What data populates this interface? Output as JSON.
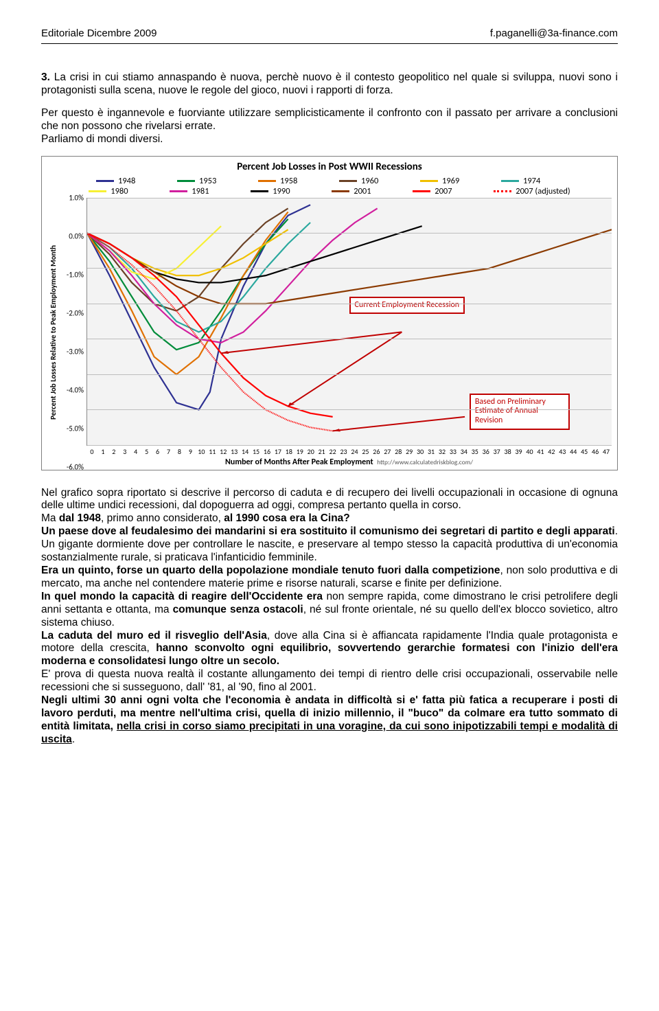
{
  "header": {
    "left": "Editoriale Dicembre 2009",
    "right": "f.paganelli@3a-finance.com"
  },
  "para1_lead": "3.",
  "para1": " La crisi in cui stiamo annaspando è nuova, perchè nuovo è il contesto geopolitico nel quale si sviluppa, nuovi sono i protagonisti sulla scena, nuove le regole del gioco, nuovi i rapporti di forza.",
  "para2": "Per questo è ingannevole e fuorviante utilizzare semplicisticamente il confronto con il passato per arrivare a conclusioni che non possono che rivelarsi errate.",
  "para3": "Parliamo di mondi diversi.",
  "chart": {
    "title": "Percent Job Losses in Post WWII Recessions",
    "yaxis_label": "Percent Job Losses Relative to Peak Employment Month",
    "xaxis_label": "Number of Months After Peak Employment",
    "xaxis_source": "http://www.calculatedriskblog.com/",
    "ylim": [
      -6.0,
      1.0
    ],
    "yticks": [
      "1.0%",
      "0.0%",
      "-1.0%",
      "-2.0%",
      "-3.0%",
      "-4.0%",
      "-5.0%",
      "-6.0%"
    ],
    "ytick_vals": [
      1.0,
      0.0,
      -1.0,
      -2.0,
      -3.0,
      -4.0,
      -5.0,
      -6.0
    ],
    "xticks": [
      "0",
      "1",
      "2",
      "3",
      "4",
      "5",
      "6",
      "7",
      "8",
      "9",
      "10",
      "11",
      "12",
      "13",
      "14",
      "15",
      "16",
      "17",
      "18",
      "19",
      "20",
      "21",
      "22",
      "23",
      "24",
      "25",
      "26",
      "27",
      "28",
      "29",
      "30",
      "31",
      "32",
      "33",
      "34",
      "35",
      "36",
      "37",
      "38",
      "39",
      "40",
      "41",
      "42",
      "43",
      "44",
      "45",
      "46",
      "47"
    ],
    "background_color": "#f3f3f3",
    "grid_color": "#bdbdbd",
    "callout1": "Current Employment Recession",
    "callout1_color": "#c00000",
    "callout2": "Based on Preliminary Estimate of Annual Revision",
    "callout2_color": "#c00000",
    "legend": [
      {
        "label": "1948",
        "color": "#2e3192",
        "style": "solid"
      },
      {
        "label": "1953",
        "color": "#008c3a",
        "style": "solid"
      },
      {
        "label": "1958",
        "color": "#e07000",
        "style": "solid"
      },
      {
        "label": "1960",
        "color": "#6b4226",
        "style": "solid"
      },
      {
        "label": "1969",
        "color": "#f0c000",
        "style": "solid"
      },
      {
        "label": "1974",
        "color": "#2aa89e",
        "style": "solid"
      },
      {
        "label": "1980",
        "color": "#f7f033",
        "style": "solid"
      },
      {
        "label": "1981",
        "color": "#d11f9e",
        "style": "solid"
      },
      {
        "label": "1990",
        "color": "#000000",
        "style": "solid"
      },
      {
        "label": "2001",
        "color": "#8b3a00",
        "style": "solid"
      },
      {
        "label": "2007",
        "color": "#ff0000",
        "style": "solid"
      },
      {
        "label": "2007 (adjusted)",
        "color": "#ff0000",
        "style": "dotted"
      }
    ],
    "series": {
      "1948": {
        "color": "#2e3192",
        "pts": [
          [
            0,
            0
          ],
          [
            2,
            -1.2
          ],
          [
            4,
            -2.5
          ],
          [
            6,
            -3.8
          ],
          [
            8,
            -4.8
          ],
          [
            10,
            -5.0
          ],
          [
            11,
            -4.5
          ],
          [
            12,
            -3.0
          ],
          [
            14,
            -1.5
          ],
          [
            16,
            -0.3
          ],
          [
            18,
            0.5
          ],
          [
            20,
            0.8
          ]
        ]
      },
      "1953": {
        "color": "#008c3a",
        "pts": [
          [
            0,
            0
          ],
          [
            2,
            -0.8
          ],
          [
            4,
            -1.8
          ],
          [
            6,
            -2.8
          ],
          [
            8,
            -3.3
          ],
          [
            10,
            -3.1
          ],
          [
            12,
            -2.2
          ],
          [
            14,
            -1.2
          ],
          [
            16,
            -0.3
          ],
          [
            18,
            0.4
          ]
        ]
      },
      "1958": {
        "color": "#e07000",
        "pts": [
          [
            0,
            0
          ],
          [
            2,
            -1.0
          ],
          [
            4,
            -2.2
          ],
          [
            6,
            -3.5
          ],
          [
            8,
            -4.0
          ],
          [
            10,
            -3.5
          ],
          [
            12,
            -2.4
          ],
          [
            14,
            -1.2
          ],
          [
            16,
            -0.2
          ],
          [
            18,
            0.6
          ]
        ]
      },
      "1960": {
        "color": "#6b4226",
        "pts": [
          [
            0,
            0
          ],
          [
            2,
            -0.6
          ],
          [
            4,
            -1.4
          ],
          [
            6,
            -2.0
          ],
          [
            8,
            -2.2
          ],
          [
            10,
            -1.8
          ],
          [
            12,
            -1.0
          ],
          [
            14,
            -0.3
          ],
          [
            16,
            0.3
          ],
          [
            18,
            0.7
          ]
        ]
      },
      "1969": {
        "color": "#f0c000",
        "pts": [
          [
            0,
            0
          ],
          [
            2,
            -0.3
          ],
          [
            4,
            -0.7
          ],
          [
            6,
            -1.0
          ],
          [
            8,
            -1.2
          ],
          [
            10,
            -1.2
          ],
          [
            12,
            -1.0
          ],
          [
            14,
            -0.7
          ],
          [
            16,
            -0.3
          ],
          [
            18,
            0.1
          ]
        ]
      },
      "1974": {
        "color": "#2aa89e",
        "pts": [
          [
            0,
            0
          ],
          [
            2,
            -0.4
          ],
          [
            4,
            -1.0
          ],
          [
            6,
            -1.8
          ],
          [
            8,
            -2.5
          ],
          [
            10,
            -2.8
          ],
          [
            12,
            -2.5
          ],
          [
            14,
            -1.8
          ],
          [
            16,
            -1.0
          ],
          [
            18,
            -0.3
          ],
          [
            20,
            0.3
          ]
        ]
      },
      "1980": {
        "color": "#f7f033",
        "pts": [
          [
            0,
            0
          ],
          [
            2,
            -0.5
          ],
          [
            4,
            -1.1
          ],
          [
            6,
            -1.3
          ],
          [
            8,
            -1.0
          ],
          [
            10,
            -0.4
          ],
          [
            12,
            0.2
          ]
        ]
      },
      "1981": {
        "color": "#d11f9e",
        "pts": [
          [
            0,
            0
          ],
          [
            2,
            -0.5
          ],
          [
            4,
            -1.2
          ],
          [
            6,
            -2.0
          ],
          [
            8,
            -2.6
          ],
          [
            10,
            -3.0
          ],
          [
            12,
            -3.1
          ],
          [
            14,
            -2.8
          ],
          [
            16,
            -2.2
          ],
          [
            18,
            -1.5
          ],
          [
            20,
            -0.8
          ],
          [
            22,
            -0.2
          ],
          [
            24,
            0.3
          ],
          [
            26,
            0.7
          ]
        ]
      },
      "1990": {
        "color": "#000000",
        "pts": [
          [
            0,
            0
          ],
          [
            2,
            -0.3
          ],
          [
            4,
            -0.7
          ],
          [
            6,
            -1.1
          ],
          [
            8,
            -1.3
          ],
          [
            10,
            -1.4
          ],
          [
            12,
            -1.4
          ],
          [
            14,
            -1.3
          ],
          [
            16,
            -1.2
          ],
          [
            18,
            -1.0
          ],
          [
            20,
            -0.8
          ],
          [
            22,
            -0.6
          ],
          [
            24,
            -0.4
          ],
          [
            26,
            -0.2
          ],
          [
            28,
            0.0
          ],
          [
            30,
            0.2
          ]
        ]
      },
      "2001": {
        "color": "#8b3a00",
        "pts": [
          [
            0,
            0
          ],
          [
            2,
            -0.3
          ],
          [
            4,
            -0.7
          ],
          [
            6,
            -1.1
          ],
          [
            8,
            -1.5
          ],
          [
            10,
            -1.8
          ],
          [
            12,
            -2.0
          ],
          [
            14,
            -2.0
          ],
          [
            16,
            -2.0
          ],
          [
            18,
            -1.9
          ],
          [
            20,
            -1.8
          ],
          [
            22,
            -1.7
          ],
          [
            24,
            -1.6
          ],
          [
            26,
            -1.5
          ],
          [
            28,
            -1.4
          ],
          [
            30,
            -1.3
          ],
          [
            32,
            -1.2
          ],
          [
            34,
            -1.1
          ],
          [
            36,
            -1.0
          ],
          [
            38,
            -0.8
          ],
          [
            40,
            -0.6
          ],
          [
            42,
            -0.4
          ],
          [
            44,
            -0.2
          ],
          [
            46,
            0.0
          ],
          [
            47,
            0.1
          ]
        ]
      },
      "2007": {
        "color": "#ff0000",
        "pts": [
          [
            0,
            0
          ],
          [
            2,
            -0.3
          ],
          [
            4,
            -0.7
          ],
          [
            6,
            -1.2
          ],
          [
            8,
            -1.8
          ],
          [
            10,
            -2.6
          ],
          [
            12,
            -3.4
          ],
          [
            14,
            -4.1
          ],
          [
            16,
            -4.6
          ],
          [
            18,
            -4.9
          ],
          [
            20,
            -5.1
          ],
          [
            22,
            -5.2
          ]
        ]
      },
      "2007adj": {
        "color": "#ff0000",
        "style": "dotted",
        "pts": [
          [
            0,
            0
          ],
          [
            2,
            -0.4
          ],
          [
            4,
            -0.9
          ],
          [
            6,
            -1.5
          ],
          [
            8,
            -2.2
          ],
          [
            10,
            -3.0
          ],
          [
            12,
            -3.8
          ],
          [
            14,
            -4.5
          ],
          [
            16,
            -5.0
          ],
          [
            18,
            -5.3
          ],
          [
            20,
            -5.5
          ],
          [
            22,
            -5.6
          ]
        ]
      }
    }
  },
  "body_after": {
    "p1": "Nel grafico sopra riportato si descrive il percorso di caduta e di recupero dei livelli occupazionali in occasione di ognuna delle ultime undici recessioni, dal dopoguerra ad oggi, compresa pertanto quella in corso.",
    "p2a": "Ma ",
    "p2b": "dal 1948",
    "p2c": ", primo anno considerato, ",
    "p2d": "al 1990 cosa era la Cina?",
    "p3a": "Un paese dove al feudalesimo dei mandarini si era sostituito il comunismo dei segretari di partito e degli apparati",
    "p3b": ". Un gigante dormiente dove per controllare le nascite, e preservare al tempo stesso la capacità produttiva di un'economia sostanzialmente rurale, si praticava l'infanticidio femminile.",
    "p4a": "Era un quinto, forse un quarto della popolazione mondiale tenuto fuori dalla competizione",
    "p4b": ", non solo produttiva e di mercato, ma anche nel contendere materie prime e risorse naturali, scarse e finite per definizione.",
    "p5a": "In quel mondo la capacità di reagire dell'Occidente era",
    "p5b": " non sempre rapida, come dimostrano le crisi petrolifere degli anni settanta e ottanta, ma ",
    "p5c": "comunque senza ostacoli",
    "p5d": ", né sul fronte orientale, né su quello dell'ex blocco sovietico, altro sistema chiuso.",
    "p6a": "La caduta del muro ed il risveglio dell'Asia",
    "p6b": ", dove alla Cina si è affiancata rapidamente l'India quale protagonista e motore della crescita, ",
    "p6c": "hanno sconvolto ogni equilibrio, sovvertendo gerarchie formatesi con l'inizio dell'era moderna e consolidatesi lungo oltre un secolo.",
    "p7": "E' prova di questa nuova realtà il costante allungamento dei tempi di rientro delle crisi occupazionali, osservabile nelle recessioni che si susseguono, dall' '81, al '90, fino al 2001.",
    "p8a": "Negli ultimi 30 anni ogni volta che l'economia è andata in difficoltà si e' fatta più fatica a recuperare i posti di lavoro perduti, ma mentre nell'ultima crisi, quella di inizio millennio, il \"buco\" da colmare era tutto sommato di entità limitata, ",
    "p8b": "nella crisi in corso siamo precipitati in una voragine, da cui sono inipotizzabili tempi e modalità di uscita",
    "p8c": "."
  }
}
